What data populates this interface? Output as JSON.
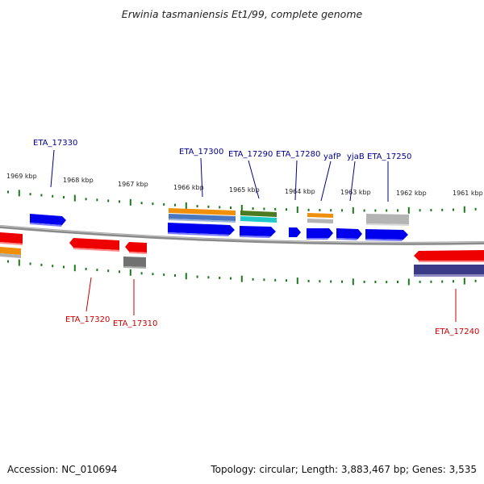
{
  "title": "Erwinia tasmaniensis Et1/99, complete genome",
  "footer": {
    "accession": "Accession: NC_010694",
    "stats": "Topology: circular; Length: 3,883,467 bp; Genes: 3,535"
  },
  "scale_labels": [
    "1969 kbp",
    "1968 kbp",
    "1967 kbp",
    "1966 kbp",
    "1965 kbp",
    "1964 kbp",
    "1963 kbp",
    "1962 kbp",
    "1961 kbp"
  ],
  "genes": [
    {
      "id": "g17330",
      "label": "ETA_17330",
      "color": "#00008b"
    },
    {
      "id": "g17300",
      "label": "ETA_17300",
      "color": "#00008b"
    },
    {
      "id": "g17290",
      "label": "ETA_17290",
      "color": "#00008b"
    },
    {
      "id": "g17280",
      "label": "ETA_17280",
      "color": "#00008b"
    },
    {
      "id": "gyafP",
      "label": "yafP",
      "color": "#00008b"
    },
    {
      "id": "gyjaB",
      "label": "yjaB",
      "color": "#00008b"
    },
    {
      "id": "g17250",
      "label": "ETA_17250",
      "color": "#00008b"
    },
    {
      "id": "g17320",
      "label": "ETA_17320",
      "color": "#cc0000"
    },
    {
      "id": "g17310",
      "label": "ETA_17310",
      "color": "#cc0000"
    },
    {
      "id": "g17240",
      "label": "ETA_17240",
      "color": "#cc0000"
    }
  ],
  "colors": {
    "forward": "#0000ee",
    "reverse": "#ee0000",
    "orange": "#f0900a",
    "steelblue": "#4a78c0",
    "olive": "#4c7a20",
    "cyan": "#20c8c8",
    "gray": "#b4b4b4",
    "darkgray": "#707070",
    "navy": "#3a3a88",
    "tick": "#1a7a1a",
    "backbone": "#8a8a8a"
  }
}
